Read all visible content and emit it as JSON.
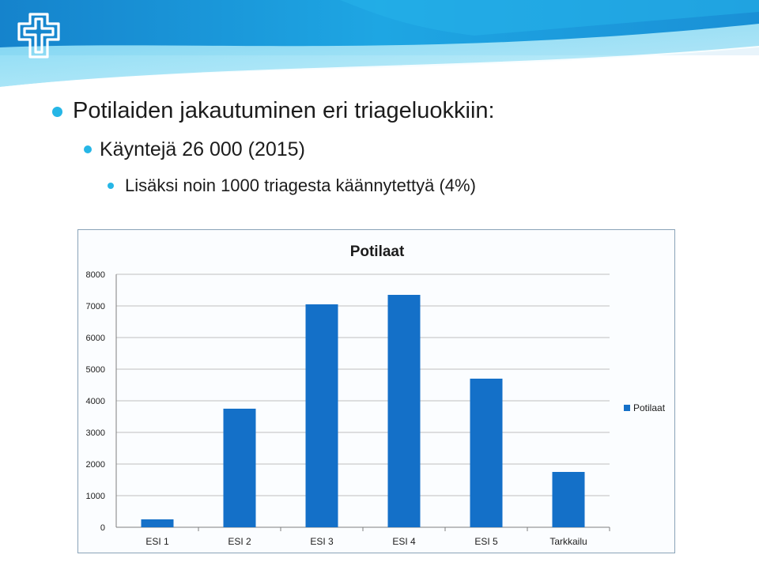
{
  "slide": {
    "bullets": [
      {
        "level": 1,
        "text": "Potilaiden jakautuminen eri triageluokkiin:"
      },
      {
        "level": 2,
        "text": "Käyntejä 26 000 (2015)"
      },
      {
        "level": 3,
        "text": "Lisäksi noin 1000 triagesta käännytettyä (4%)"
      }
    ],
    "colors": {
      "accent": "#26b6e6",
      "banner_dark": "#1a8fd0",
      "banner_light": "#6fd3f0"
    }
  },
  "chart_data": {
    "type": "bar",
    "title": "Potilaat",
    "categories": [
      "ESI 1",
      "ESI 2",
      "ESI 3",
      "ESI 4",
      "ESI 5",
      "Tarkkailu"
    ],
    "series": [
      {
        "name": "Potilaat",
        "values": [
          250,
          3750,
          7050,
          7350,
          4700,
          1750
        ],
        "color": "#1470c8"
      }
    ],
    "ylim": [
      0,
      8000
    ],
    "yticks": [
      "0",
      "1000",
      "2000",
      "3000",
      "4000",
      "5000",
      "6000",
      "7000",
      "8000"
    ],
    "grid": true,
    "legend": "right",
    "xlabel": "",
    "ylabel": ""
  }
}
